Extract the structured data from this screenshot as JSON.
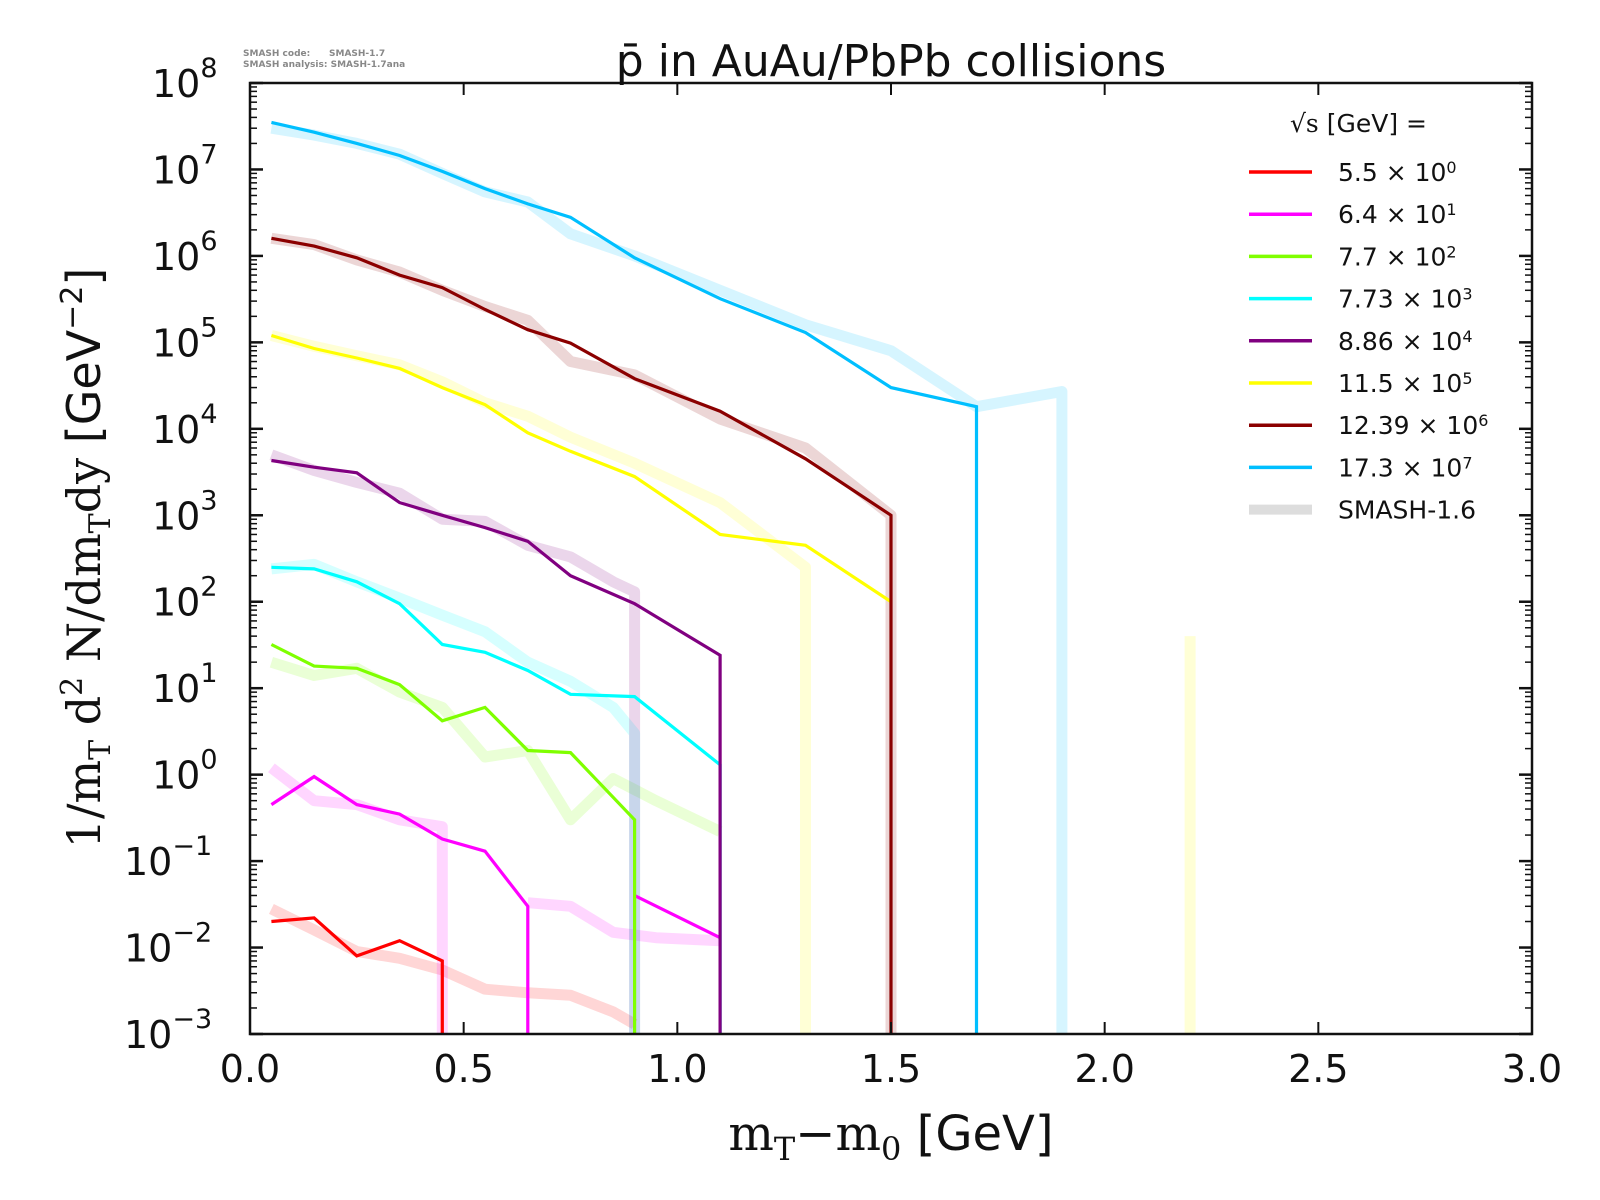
{
  "chart_data": {
    "type": "line",
    "title": "p̄ in AuAu/PbPb collisions",
    "meta_lines": [
      "SMASH code:      SMASH-1.7",
      "SMASH analysis: SMASH-1.7ana"
    ],
    "xlabel": "mT−m0 [GeV]",
    "xlabel_parts": {
      "m1": "m",
      "s1": "T",
      "minus": "−m",
      "s2": "0",
      "unit": " [GeV]"
    },
    "ylabel_parts": {
      "a": "1/m",
      "s1": "T",
      "b": " d",
      "sup": "2",
      "c": " N/dm",
      "s2": "T",
      "d": "dy",
      "unit": " [GeV",
      "exp": "−2",
      "close": "]"
    },
    "ylabel": "1/mT d2 N/dmTdy [GeV−2]",
    "xlim": [
      0.0,
      3.0
    ],
    "ylim": [
      0.001,
      100000000
    ],
    "yscale": "log",
    "x_ticks": [
      "0.0",
      "0.5",
      "1.0",
      "1.5",
      "2.0",
      "2.5",
      "3.0"
    ],
    "x_tick_values": [
      0.0,
      0.5,
      1.0,
      1.5,
      2.0,
      2.5,
      3.0
    ],
    "y_ticks": [
      {
        "base": "10",
        "exp": "8",
        "value": 100000000
      },
      {
        "base": "10",
        "exp": "7",
        "value": 10000000
      },
      {
        "base": "10",
        "exp": "6",
        "value": 1000000
      },
      {
        "base": "10",
        "exp": "5",
        "value": 100000
      },
      {
        "base": "10",
        "exp": "4",
        "value": 10000
      },
      {
        "base": "10",
        "exp": "3",
        "value": 1000
      },
      {
        "base": "10",
        "exp": "2",
        "value": 100
      },
      {
        "base": "10",
        "exp": "1",
        "value": 10
      },
      {
        "base": "10",
        "exp": "0",
        "value": 1
      },
      {
        "base": "10",
        "exp": "−1",
        "value": 0.1
      },
      {
        "base": "10",
        "exp": "−2",
        "value": 0.01
      },
      {
        "base": "10",
        "exp": "−3",
        "value": 0.001
      }
    ],
    "legend": {
      "title_sqrt": "√s",
      "title": " [GeV] =",
      "position": "top-right",
      "entries": [
        {
          "label": "5.5 × 10",
          "sup": "0",
          "color": "#ff0000"
        },
        {
          "label": "6.4 × 10",
          "sup": "1",
          "color": "#ff00ff"
        },
        {
          "label": "7.7 × 10",
          "sup": "2",
          "color": "#7fff00"
        },
        {
          "label": "7.73 × 10",
          "sup": "3",
          "color": "#00ffff"
        },
        {
          "label": "8.86 × 10",
          "sup": "4",
          "color": "#800080"
        },
        {
          "label": "11.5 × 10",
          "sup": "5",
          "color": "#ffff00"
        },
        {
          "label": "12.39 × 10",
          "sup": "6",
          "color": "#8b0000"
        },
        {
          "label": "17.3 × 10",
          "sup": "7",
          "color": "#00bfff"
        },
        {
          "label": "SMASH-1.6",
          "sup": "",
          "color": "#dddddd"
        }
      ]
    },
    "series": [
      {
        "name": "5.5 x 10^0",
        "color": "#ff0000",
        "x": [
          0.05,
          0.15,
          0.25,
          0.35,
          0.45,
          0.45
        ],
        "y": [
          0.02,
          0.022,
          0.008,
          0.012,
          0.007,
          0.0009
        ],
        "ref_x": [
          0.05,
          0.15,
          0.25,
          0.35,
          0.45,
          0.55,
          0.65,
          0.75,
          0.85,
          0.9
        ],
        "ref_y": [
          0.028,
          0.016,
          0.009,
          0.0075,
          0.0055,
          0.0033,
          0.003,
          0.0028,
          0.0018,
          0.0013
        ]
      },
      {
        "name": "6.4 x 10^1",
        "color": "#ff00ff",
        "x": [
          0.05,
          0.15,
          0.25,
          0.35,
          0.45,
          0.55,
          0.65,
          0.65,
          null,
          0.9,
          1.1
        ],
        "y": [
          0.45,
          0.95,
          0.45,
          0.35,
          0.18,
          0.13,
          0.03,
          0.0009,
          null,
          0.04,
          0.013
        ],
        "ref_x": [
          0.05,
          0.15,
          0.25,
          0.35,
          0.45,
          0.45,
          null,
          0.65,
          0.75,
          0.85,
          0.95,
          1.1
        ],
        "ref_y": [
          1.2,
          0.5,
          0.45,
          0.3,
          0.25,
          0.0009,
          null,
          0.033,
          0.03,
          0.015,
          0.013,
          0.012
        ]
      },
      {
        "name": "7.7 x 10^2",
        "color": "#7fff00",
        "x": [
          0.05,
          0.15,
          0.25,
          0.35,
          0.45,
          0.55,
          0.65,
          0.75,
          0.9,
          0.9
        ],
        "y": [
          32,
          18,
          17,
          11,
          4.2,
          6,
          1.9,
          1.8,
          0.3,
          0.0009
        ],
        "ref_x": [
          0.05,
          0.15,
          0.25,
          0.35,
          0.45,
          0.55,
          0.65,
          0.75,
          0.85,
          0.95,
          1.1
        ],
        "ref_y": [
          20,
          14,
          17,
          9,
          6,
          1.6,
          1.9,
          0.3,
          0.9,
          0.5,
          0.22
        ]
      },
      {
        "name": "7.73 x 10^3",
        "color": "#00ffff",
        "x": [
          0.05,
          0.15,
          0.25,
          0.35,
          0.45,
          0.55,
          0.65,
          0.75,
          0.9,
          1.1,
          1.1
        ],
        "y": [
          250,
          240,
          170,
          95,
          32,
          26,
          16,
          8.5,
          8,
          1.3,
          0.0009
        ],
        "ref_x": [
          0.05,
          0.15,
          0.25,
          0.35,
          0.45,
          0.55,
          0.65,
          0.75,
          0.85,
          0.9,
          0.9
        ],
        "ref_y": [
          240,
          270,
          170,
          110,
          70,
          45,
          20,
          12,
          6,
          3,
          0.0009
        ]
      },
      {
        "name": "8.86 x 10^4",
        "color": "#800080",
        "x": [
          0.05,
          0.15,
          0.25,
          0.35,
          0.45,
          0.55,
          0.65,
          0.75,
          0.9,
          1.1,
          1.1
        ],
        "y": [
          4300,
          3600,
          3100,
          1400,
          1000,
          720,
          500,
          200,
          95,
          24,
          0.0009
        ],
        "ref_x": [
          0.05,
          0.15,
          0.25,
          0.35,
          0.45,
          0.55,
          0.65,
          0.75,
          0.85,
          0.9,
          0.9
        ],
        "ref_y": [
          5000,
          3300,
          2400,
          1800,
          900,
          850,
          450,
          330,
          170,
          130,
          0.0009
        ]
      },
      {
        "name": "11.5 x 10^5",
        "color": "#ffff00",
        "x": [
          0.05,
          0.15,
          0.25,
          0.35,
          0.45,
          0.55,
          0.65,
          0.75,
          0.9,
          1.1,
          1.3,
          1.5
        ],
        "y": [
          120000,
          85000,
          66000,
          50000,
          30000,
          19000,
          9000,
          5500,
          2800,
          600,
          450,
          100
        ],
        "ref_x": [
          0.05,
          0.15,
          0.25,
          0.35,
          0.45,
          0.55,
          0.65,
          0.75,
          0.9,
          1.1,
          1.3,
          1.3,
          null,
          1.3,
          1.3,
          null,
          2.2,
          2.2
        ],
        "ref_y": [
          120000,
          90000,
          70000,
          55000,
          35000,
          20000,
          14000,
          8000,
          4000,
          1400,
          250,
          0.0009,
          null,
          22,
          0.0009,
          null,
          40,
          0.0009
        ]
      },
      {
        "name": "12.39 x 10^6",
        "color": "#8b0000",
        "x": [
          0.05,
          0.15,
          0.25,
          0.35,
          0.45,
          0.55,
          0.65,
          0.75,
          0.9,
          1.1,
          1.3,
          1.5,
          1.5
        ],
        "y": [
          1600000,
          1300000,
          950000,
          600000,
          430000,
          240000,
          140000,
          98000,
          38000,
          16000,
          4500,
          1000,
          0.0009
        ],
        "ref_x": [
          0.05,
          0.15,
          0.25,
          0.35,
          0.45,
          0.55,
          0.65,
          0.75,
          0.9,
          1.1,
          1.3,
          1.5,
          1.5
        ],
        "ref_y": [
          1600000,
          1350000,
          900000,
          650000,
          400000,
          260000,
          180000,
          60000,
          42000,
          13000,
          6000,
          1000,
          0.0009
        ]
      },
      {
        "name": "17.3 x 10^7",
        "color": "#00bfff",
        "x": [
          0.05,
          0.15,
          0.25,
          0.35,
          0.45,
          0.55,
          0.65,
          0.75,
          0.9,
          1.1,
          1.3,
          1.5,
          1.7,
          1.7
        ],
        "y": [
          35000000,
          27000000,
          20000000,
          14500000,
          9500000,
          6000000,
          4000000,
          2800000,
          950000,
          320000,
          130000,
          30000,
          18000,
          0.0009
        ],
        "ref_x": [
          0.05,
          0.15,
          0.25,
          0.35,
          0.45,
          0.55,
          0.65,
          0.75,
          0.9,
          1.1,
          1.3,
          1.5,
          1.7,
          1.9,
          1.9
        ],
        "ref_y": [
          30000000,
          25000000,
          20000000,
          15000000,
          9000000,
          5500000,
          4200000,
          1800000,
          1000000,
          400000,
          160000,
          80000,
          18000,
          27000,
          0.0009
        ]
      }
    ]
  }
}
